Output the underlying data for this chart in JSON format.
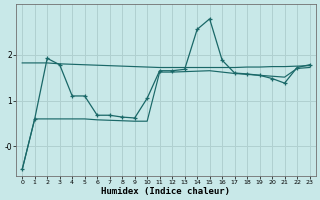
{
  "xlabel": "Humidex (Indice chaleur)",
  "bg_color": "#c8e8e8",
  "grid_color": "#b0d0d0",
  "line_color": "#1a6868",
  "x": [
    0,
    1,
    2,
    3,
    4,
    5,
    6,
    7,
    8,
    9,
    10,
    11,
    12,
    13,
    14,
    15,
    16,
    17,
    18,
    19,
    20,
    21,
    22,
    23
  ],
  "line1": [
    -0.5,
    0.6,
    1.92,
    1.78,
    1.1,
    1.1,
    0.68,
    0.68,
    0.64,
    0.62,
    1.05,
    1.65,
    1.65,
    1.68,
    2.55,
    2.78,
    1.88,
    1.6,
    1.58,
    1.55,
    1.48,
    1.38,
    1.72,
    1.78
  ],
  "line2": [
    1.82,
    1.82,
    1.82,
    1.8,
    1.79,
    1.78,
    1.77,
    1.76,
    1.75,
    1.74,
    1.73,
    1.72,
    1.72,
    1.72,
    1.72,
    1.72,
    1.72,
    1.72,
    1.73,
    1.73,
    1.74,
    1.74,
    1.75,
    1.76
  ],
  "line3": [
    -0.5,
    0.6,
    0.6,
    0.6,
    0.6,
    0.6,
    0.58,
    0.57,
    0.56,
    0.55,
    0.55,
    1.62,
    1.62,
    1.63,
    1.64,
    1.65,
    1.62,
    1.59,
    1.57,
    1.55,
    1.53,
    1.51,
    1.7,
    1.72
  ],
  "ylim": [
    -0.65,
    3.1
  ],
  "ytick_vals": [
    0,
    1,
    2
  ],
  "ytick_labels": [
    "-0",
    "1",
    "2"
  ],
  "xlim": [
    -0.5,
    23.5
  ],
  "figwidth": 3.2,
  "figheight": 2.0,
  "dpi": 100
}
